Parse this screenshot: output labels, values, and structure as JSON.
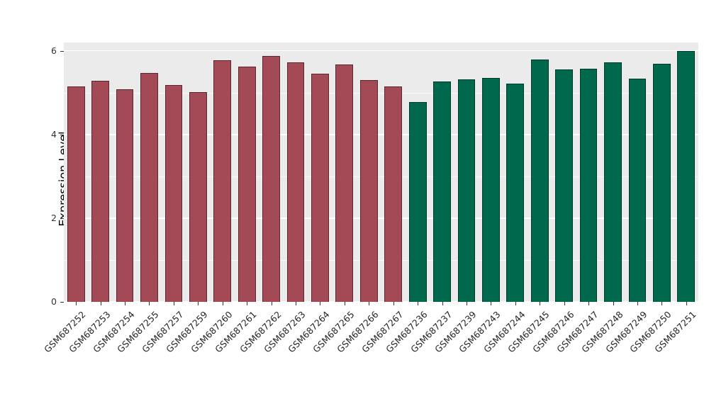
{
  "chart_data": {
    "type": "bar",
    "title": "",
    "xlabel": "",
    "ylabel": "Expression Level",
    "ylim": [
      0,
      6.2
    ],
    "yticks": [
      0,
      2,
      4,
      6
    ],
    "yticks_minor": [
      1,
      3,
      5
    ],
    "grid": true,
    "legend": false,
    "panel_background": "#ebebeb",
    "categories": [
      "GSM687252",
      "GSM687253",
      "GSM687254",
      "GSM687255",
      "GSM687257",
      "GSM687259",
      "GSM687260",
      "GSM687261",
      "GSM687262",
      "GSM687263",
      "GSM687264",
      "GSM687265",
      "GSM687266",
      "GSM687267",
      "GSM687236",
      "GSM687237",
      "GSM687239",
      "GSM687243",
      "GSM687244",
      "GSM687245",
      "GSM687246",
      "GSM687247",
      "GSM687248",
      "GSM687249",
      "GSM687250",
      "GSM687251"
    ],
    "values": [
      5.15,
      5.28,
      5.08,
      5.47,
      5.18,
      5.02,
      5.78,
      5.62,
      5.88,
      5.72,
      5.45,
      5.68,
      5.3,
      5.15,
      4.78,
      5.27,
      5.32,
      5.36,
      5.22,
      5.8,
      5.55,
      5.58,
      5.72,
      5.33,
      5.7,
      6.0
    ],
    "groups": [
      "group1",
      "group1",
      "group1",
      "group1",
      "group1",
      "group1",
      "group1",
      "group1",
      "group1",
      "group1",
      "group1",
      "group1",
      "group1",
      "group1",
      "group2",
      "group2",
      "group2",
      "group2",
      "group2",
      "group2",
      "group2",
      "group2",
      "group2",
      "group2",
      "group2",
      "group2"
    ],
    "group_colors": {
      "group1": "#a34a56",
      "group2": "#00684c"
    }
  }
}
